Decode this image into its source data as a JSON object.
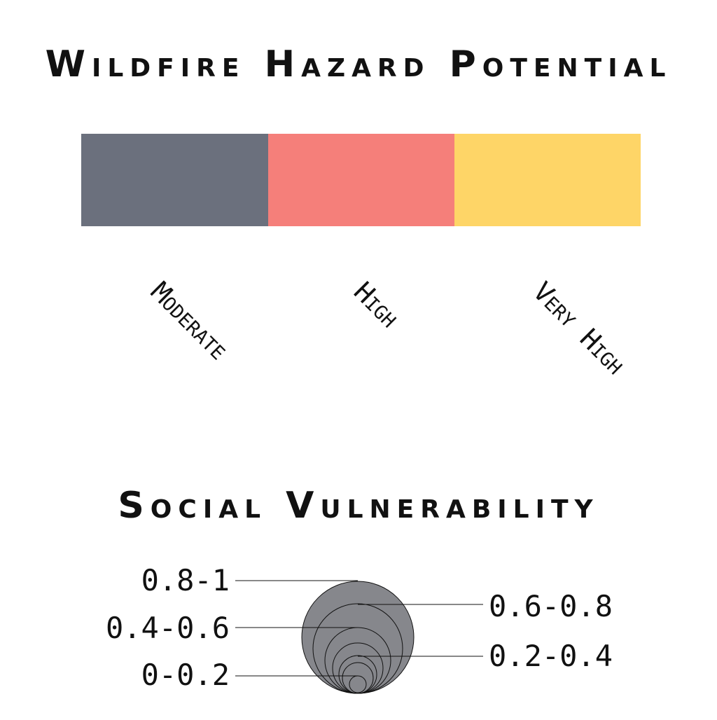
{
  "hazard": {
    "title": "Wildfire Hazard Potential",
    "categories": [
      {
        "label": "Moderate",
        "color": "#6b707d"
      },
      {
        "label": "High",
        "color": "#f57f7a"
      },
      {
        "label": "Very High",
        "color": "#fed567"
      }
    ]
  },
  "vulnerability": {
    "title": "Social Vulnerability",
    "circle_fill": "#86878c",
    "ranges": [
      {
        "label": "0.8-1",
        "side": "left"
      },
      {
        "label": "0.6-0.8",
        "side": "right"
      },
      {
        "label": "0.4-0.6",
        "side": "left"
      },
      {
        "label": "0.2-0.4",
        "side": "right"
      },
      {
        "label": "0-0.2",
        "side": "left"
      }
    ]
  }
}
